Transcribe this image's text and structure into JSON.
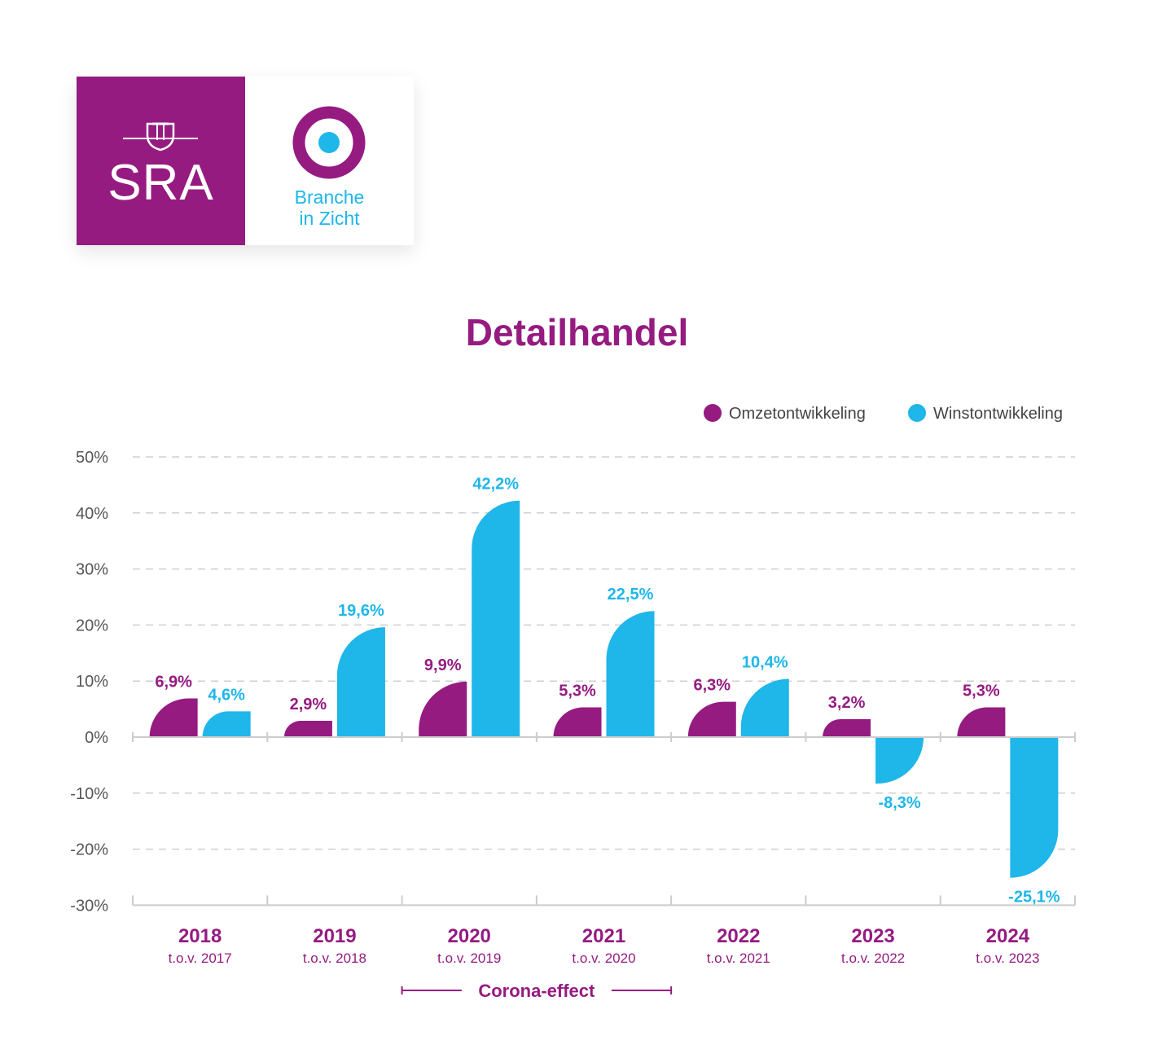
{
  "logo": {
    "sra_text": "SRA",
    "biz_line1": "Branche",
    "biz_line2": "in Zicht"
  },
  "colors": {
    "purple": "#951b81",
    "blue": "#1fb6ea",
    "grid": "#cfcfcf"
  },
  "chart_data": {
    "type": "bar",
    "title": "Detailhandel",
    "categories": [
      "2018",
      "2019",
      "2020",
      "2021",
      "2022",
      "2023",
      "2024"
    ],
    "category_sublabels": [
      "t.o.v. 2017",
      "t.o.v. 2018",
      "t.o.v. 2019",
      "t.o.v. 2020",
      "t.o.v. 2021",
      "t.o.v. 2022",
      "t.o.v. 2023"
    ],
    "series": [
      {
        "name": "Omzetontwikkeling",
        "color": "#951b81",
        "values": [
          6.9,
          2.9,
          9.9,
          5.3,
          6.3,
          3.2,
          5.3
        ],
        "labels": [
          "6,9%",
          "2,9%",
          "9,9%",
          "5,3%",
          "6,3%",
          "3,2%",
          "5,3%"
        ]
      },
      {
        "name": "Winstontwikkeling",
        "color": "#1fb6ea",
        "values": [
          4.6,
          19.6,
          42.2,
          22.5,
          10.4,
          -8.3,
          -25.1
        ],
        "labels": [
          "4,6%",
          "19,6%",
          "42,2%",
          "22,5%",
          "10,4%",
          "-8,3%",
          "-25,1%"
        ]
      }
    ],
    "ylim": [
      -30,
      50
    ],
    "yticks": [
      50,
      40,
      30,
      20,
      10,
      0,
      -10,
      -20,
      -30
    ],
    "ytick_labels": [
      "50%",
      "40%",
      "30%",
      "20%",
      "10%",
      "0%",
      "-10%",
      "-20%",
      "-30%"
    ],
    "grid": "dashed-horizontal",
    "legend_position": "top-right",
    "annotation": {
      "text": "Corona-effect",
      "span": [
        "2020",
        "2021"
      ]
    }
  }
}
